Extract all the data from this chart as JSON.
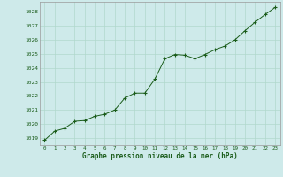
{
  "x": [
    0,
    1,
    2,
    3,
    4,
    5,
    6,
    7,
    8,
    9,
    10,
    11,
    12,
    13,
    14,
    15,
    16,
    17,
    18,
    19,
    20,
    21,
    22,
    23
  ],
  "y": [
    1018.85,
    1019.5,
    1019.7,
    1020.2,
    1020.25,
    1020.55,
    1020.7,
    1021.0,
    1021.85,
    1022.2,
    1022.2,
    1023.2,
    1024.65,
    1024.95,
    1024.9,
    1024.65,
    1024.95,
    1025.3,
    1025.55,
    1026.0,
    1026.65,
    1027.25,
    1027.8,
    1028.3
  ],
  "xlim_min": -0.5,
  "xlim_max": 23.5,
  "ylim_min": 1018.5,
  "ylim_max": 1028.7,
  "yticks": [
    1019,
    1020,
    1021,
    1022,
    1023,
    1024,
    1025,
    1026,
    1027,
    1028
  ],
  "xticks": [
    0,
    1,
    2,
    3,
    4,
    5,
    6,
    7,
    8,
    9,
    10,
    11,
    12,
    13,
    14,
    15,
    16,
    17,
    18,
    19,
    20,
    21,
    22,
    23
  ],
  "xlabel": "Graphe pression niveau de la mer (hPa)",
  "line_color": "#1a5c1a",
  "marker_color": "#1a5c1a",
  "background_color": "#ceeaea",
  "grid_color": "#b0d8cc",
  "label_color": "#1a5c1a"
}
